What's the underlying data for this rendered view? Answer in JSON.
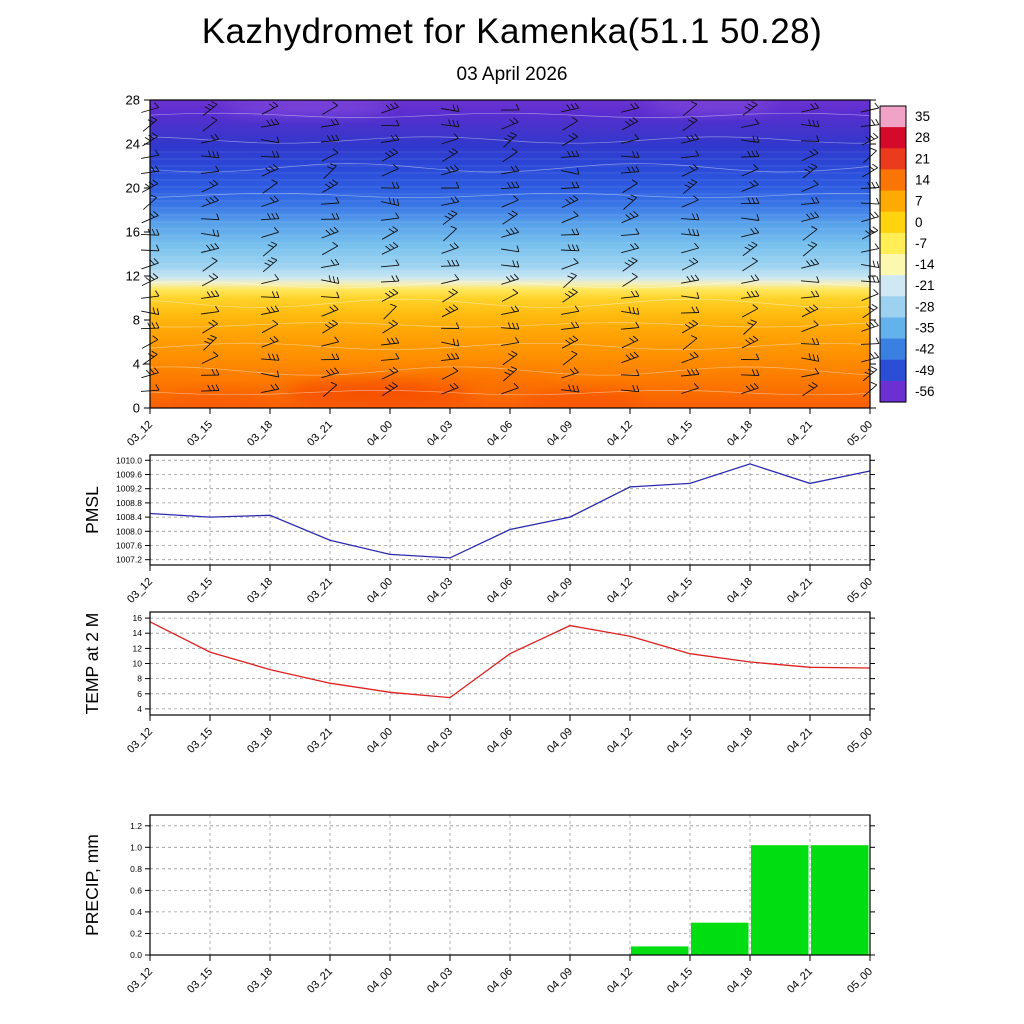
{
  "title": "Kazhydromet for Kamenka(51.1 50.28)",
  "subtitle": "03 April 2026",
  "axes": {
    "time_labels": [
      "03_12",
      "03_15",
      "03_18",
      "03_21",
      "04_00",
      "04_03",
      "04_06",
      "04_09",
      "04_12",
      "04_15",
      "04_18",
      "04_21",
      "05_00"
    ]
  },
  "colorbar": {
    "labels": [
      "35",
      "28",
      "21",
      "14",
      "7",
      "0",
      "-7",
      "-14",
      "-21",
      "-28",
      "-35",
      "-42",
      "-49",
      "-56"
    ],
    "segment_colors": [
      "#f0a3c6",
      "#d40a2b",
      "#ea3b1c",
      "#f97506",
      "#fdab02",
      "#ffd40e",
      "#ffee55",
      "#fdf8b0",
      "#cfe8f4",
      "#9cd2ef",
      "#64b2ec",
      "#3a80e0",
      "#2b4ed6",
      "#6c2fd2"
    ]
  },
  "chart_data": [
    {
      "type": "heatmap",
      "name": "upper_air",
      "description": "Time-height temperature cross-section with wind barbs; warm orange/red below ~11 km, yellow band near 11 km, light blue 12-16 km, blue 17-24 km, purple above 26 km",
      "ylim": [
        0,
        28
      ],
      "yticks": [
        0,
        4,
        8,
        12,
        16,
        20,
        24,
        28
      ],
      "x_categories": [
        "03_12",
        "03_15",
        "03_18",
        "03_21",
        "04_00",
        "04_03",
        "04_06",
        "04_09",
        "04_12",
        "04_15",
        "04_18",
        "04_21",
        "05_00"
      ],
      "wind_barbs": "black wind barbs at every level and time column",
      "gradient_top_to_bottom": [
        {
          "at": 0,
          "color": "#6b34d0"
        },
        {
          "at": 0.04,
          "color": "#5c2dd0"
        },
        {
          "at": 0.09,
          "color": "#4633cc"
        },
        {
          "at": 0.15,
          "color": "#3038cc"
        },
        {
          "at": 0.22,
          "color": "#2a49d8"
        },
        {
          "at": 0.29,
          "color": "#2e5ee2"
        },
        {
          "at": 0.345,
          "color": "#3a78e6"
        },
        {
          "at": 0.4,
          "color": "#57a0ea"
        },
        {
          "at": 0.47,
          "color": "#77c0ee"
        },
        {
          "at": 0.54,
          "color": "#9ed3f1"
        },
        {
          "at": 0.575,
          "color": "#c8e6f4"
        },
        {
          "at": 0.595,
          "color": "#f2efc0"
        },
        {
          "at": 0.615,
          "color": "#ffe75e"
        },
        {
          "at": 0.645,
          "color": "#ffd32a"
        },
        {
          "at": 0.695,
          "color": "#ffbb10"
        },
        {
          "at": 0.755,
          "color": "#ffa506"
        },
        {
          "at": 0.825,
          "color": "#fe9201"
        },
        {
          "at": 0.9,
          "color": "#fc7d01"
        },
        {
          "at": 0.96,
          "color": "#fa6b01"
        },
        {
          "at": 1,
          "color": "#f95f02"
        }
      ]
    },
    {
      "type": "line",
      "name": "pmsl",
      "ylabel": "PMSL",
      "line_color": "#2a2ab0",
      "x_categories": [
        "03_12",
        "03_15",
        "03_18",
        "03_21",
        "04_00",
        "04_03",
        "04_06",
        "04_09",
        "04_12",
        "04_15",
        "04_18",
        "04_21",
        "05_00"
      ],
      "values": [
        1008.5,
        1008.4,
        1008.45,
        1007.75,
        1007.35,
        1007.25,
        1008.05,
        1008.4,
        1009.25,
        1009.35,
        1009.9,
        1009.35,
        1009.7
      ],
      "ylim": [
        1007.05,
        1010.15
      ],
      "yticks": [
        1007.2,
        1007.6,
        1008.0,
        1008.4,
        1008.8,
        1009.2,
        1009.6,
        1010.0
      ],
      "ytick_labels": [
        "1007.2",
        "1007.6",
        "1008.0",
        "1008.4",
        "1008.8",
        "1009.2",
        "1009.6",
        "1010.0"
      ]
    },
    {
      "type": "line",
      "name": "temp2m",
      "ylabel": "TEMP at 2 M",
      "line_color": "#e02020",
      "x_categories": [
        "03_12",
        "03_15",
        "03_18",
        "03_21",
        "04_00",
        "04_03",
        "04_06",
        "04_09",
        "04_12",
        "04_15",
        "04_18",
        "04_21",
        "05_00"
      ],
      "values": [
        15.5,
        11.5,
        9.2,
        7.4,
        6.2,
        5.5,
        11.3,
        15.0,
        13.6,
        11.3,
        10.2,
        9.5,
        9.4
      ],
      "ylim": [
        3.2,
        16.8
      ],
      "yticks": [
        4,
        6,
        8,
        10,
        12,
        14,
        16
      ],
      "ytick_labels": [
        "4",
        "6",
        "8",
        "10",
        "12",
        "14",
        "16"
      ]
    },
    {
      "type": "bar",
      "name": "precip",
      "ylabel": "PRECIP, mm",
      "bar_color": "#00dd11",
      "x_categories": [
        "03_12",
        "03_15",
        "03_18",
        "03_21",
        "04_00",
        "04_03",
        "04_06",
        "04_09",
        "04_12",
        "04_15",
        "04_18",
        "04_21",
        "05_00"
      ],
      "interval_values": [
        0,
        0,
        0,
        0,
        0,
        0,
        0,
        0,
        0.08,
        0.3,
        1.02,
        1.02
      ],
      "ylim": [
        0,
        1.3
      ],
      "yticks": [
        0.0,
        0.2,
        0.4,
        0.6,
        0.8,
        1.0,
        1.2
      ],
      "ytick_labels": [
        "0.0",
        "0.2",
        "0.4",
        "0.6",
        "0.8",
        "1.0",
        "1.2"
      ]
    }
  ]
}
